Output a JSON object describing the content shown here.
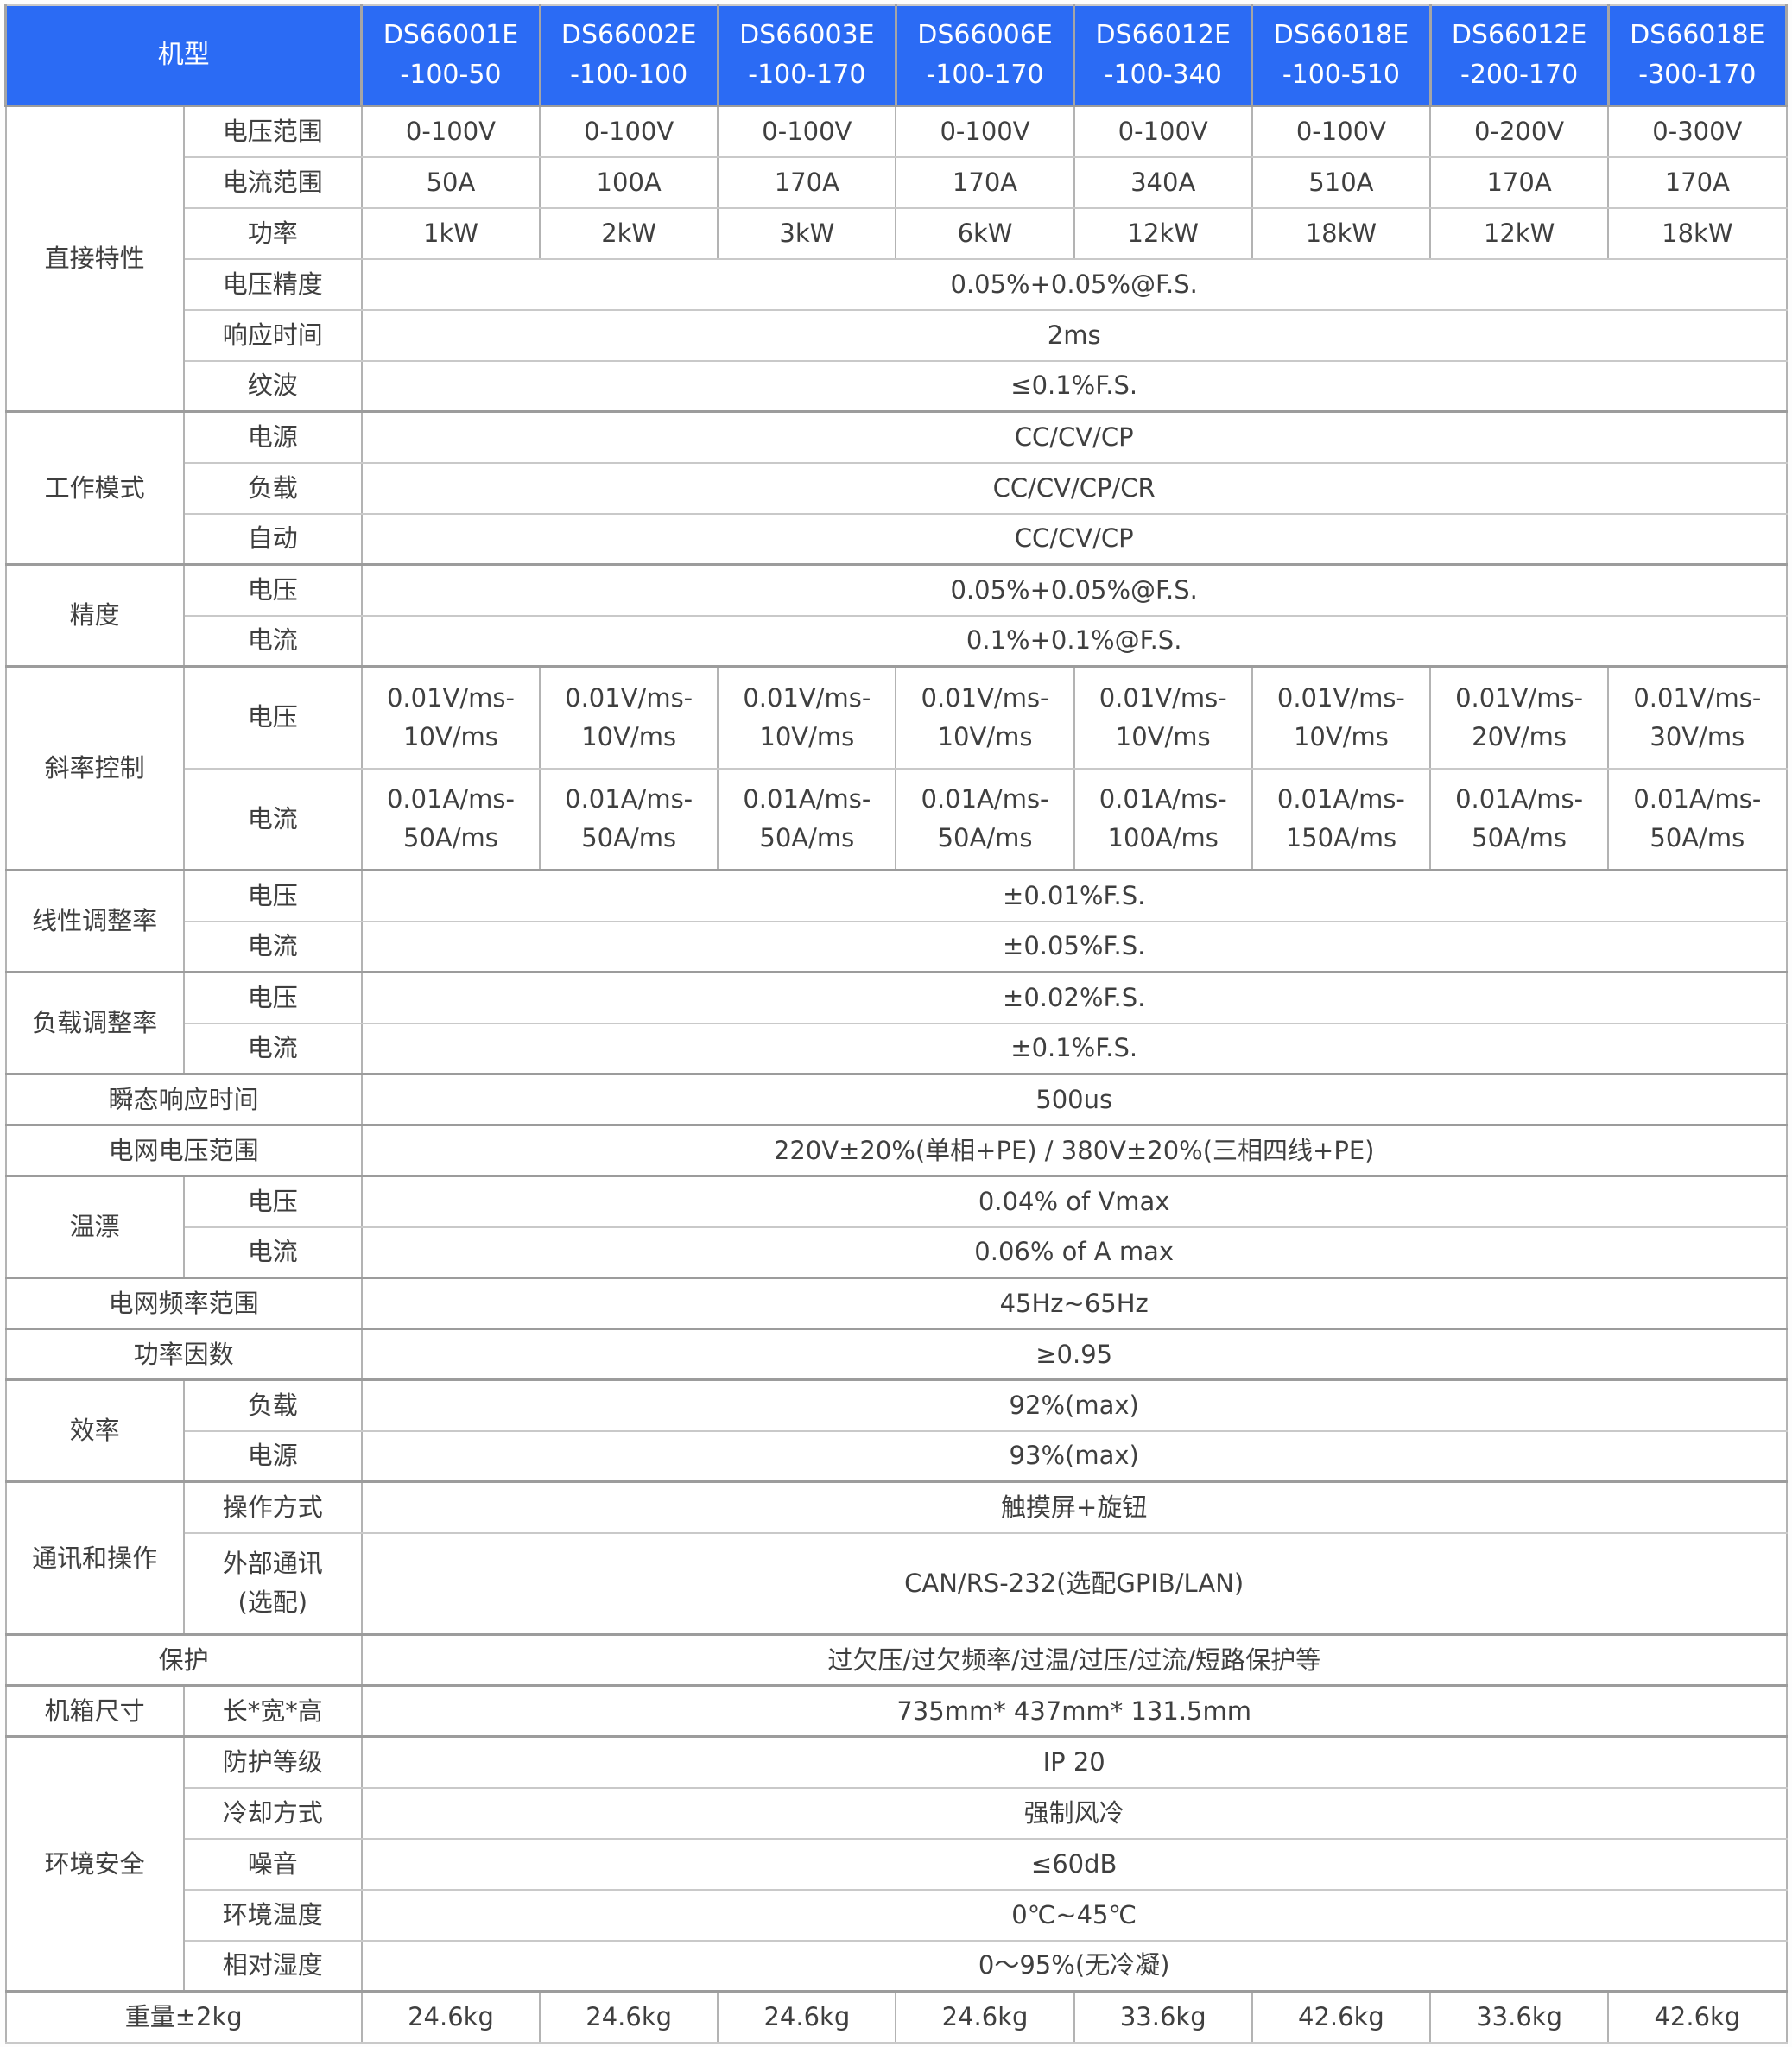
{
  "colors": {
    "header_bg": "#2b6bf4",
    "header_text": "#ffffff",
    "body_text": "#3f3f3f",
    "grid_line": "#c9c9c9",
    "group_line": "#9c9c9c"
  },
  "header": {
    "model_label": "机型",
    "models": [
      "DS66001E\n-100-50",
      "DS66002E\n-100-100",
      "DS66003E\n-100-170",
      "DS66006E\n-100-170",
      "DS66012E\n-100-340",
      "DS66018E\n-100-510",
      "DS66012E\n-200-170",
      "DS66018E\n-300-170"
    ]
  },
  "groups": [
    {
      "name": "直接特性",
      "rows": [
        {
          "label": "电压范围",
          "values": [
            "0-100V",
            "0-100V",
            "0-100V",
            "0-100V",
            "0-100V",
            "0-100V",
            "0-200V",
            "0-300V"
          ]
        },
        {
          "label": "电流范围",
          "values": [
            "50A",
            "100A",
            "170A",
            "170A",
            "340A",
            "510A",
            "170A",
            "170A"
          ]
        },
        {
          "label": "功率",
          "values": [
            "1kW",
            "2kW",
            "3kW",
            "6kW",
            "12kW",
            "18kW",
            "12kW",
            "18kW"
          ]
        },
        {
          "label": "电压精度",
          "value": "0.05%+0.05%@F.S."
        },
        {
          "label": "响应时间",
          "value": "2ms"
        },
        {
          "label": "纹波",
          "value": "≤0.1%F.S."
        }
      ]
    },
    {
      "name": "工作模式",
      "rows": [
        {
          "label": "电源",
          "value": "CC/CV/CP"
        },
        {
          "label": "负载",
          "value": "CC/CV/CP/CR"
        },
        {
          "label": "自动",
          "value": "CC/CV/CP"
        }
      ]
    },
    {
      "name": "精度",
      "rows": [
        {
          "label": "电压",
          "value": "0.05%+0.05%@F.S."
        },
        {
          "label": "电流",
          "value": "0.1%+0.1%@F.S."
        }
      ]
    },
    {
      "name": "斜率控制",
      "rows": [
        {
          "label": "电压",
          "values": [
            "0.01V/ms-\n10V/ms",
            "0.01V/ms-\n10V/ms",
            "0.01V/ms-\n10V/ms",
            "0.01V/ms-\n10V/ms",
            "0.01V/ms-\n10V/ms",
            "0.01V/ms-\n10V/ms",
            "0.01V/ms-\n20V/ms",
            "0.01V/ms-\n30V/ms"
          ]
        },
        {
          "label": "电流",
          "values": [
            "0.01A/ms-\n50A/ms",
            "0.01A/ms-\n50A/ms",
            "0.01A/ms-\n50A/ms",
            "0.01A/ms-\n50A/ms",
            "0.01A/ms-\n100A/ms",
            "0.01A/ms-\n150A/ms",
            "0.01A/ms-\n50A/ms",
            "0.01A/ms-\n50A/ms"
          ]
        }
      ]
    },
    {
      "name": "线性调整率",
      "rows": [
        {
          "label": "电压",
          "value": "±0.01%F.S."
        },
        {
          "label": "电流",
          "value": "±0.05%F.S."
        }
      ]
    },
    {
      "name": "负载调整率",
      "rows": [
        {
          "label": "电压",
          "value": "±0.02%F.S."
        },
        {
          "label": "电流",
          "value": "±0.1%F.S."
        }
      ]
    },
    {
      "name": "瞬态响应时间",
      "rows": [
        {
          "value": "500us"
        }
      ]
    },
    {
      "name": "电网电压范围",
      "rows": [
        {
          "value": "220V±20%(单相+PE) / 380V±20%(三相四线+PE)"
        }
      ]
    },
    {
      "name": "温漂",
      "rows": [
        {
          "label": "电压",
          "value": "0.04% of Vmax"
        },
        {
          "label": "电流",
          "value": "0.06% of A max"
        }
      ]
    },
    {
      "name": "电网频率范围",
      "rows": [
        {
          "value": "45Hz~65Hz"
        }
      ]
    },
    {
      "name": "功率因数",
      "rows": [
        {
          "value": "≥0.95"
        }
      ]
    },
    {
      "name": "效率",
      "rows": [
        {
          "label": "负载",
          "value": "92%(max)"
        },
        {
          "label": "电源",
          "value": "93%(max)"
        }
      ]
    },
    {
      "name": "通讯和操作",
      "rows": [
        {
          "label": "操作方式",
          "value": "触摸屏+旋钮"
        },
        {
          "label": "外部通讯\n(选配)",
          "value": "CAN/RS-232(选配GPIB/LAN)"
        }
      ]
    },
    {
      "name": "保护",
      "rows": [
        {
          "value": "过欠压/过欠频率/过温/过压/过流/短路保护等"
        }
      ]
    },
    {
      "name": "机箱尺寸",
      "rows": [
        {
          "label": "长*宽*高",
          "value": "735mm* 437mm* 131.5mm"
        }
      ]
    },
    {
      "name": "环境安全",
      "rows": [
        {
          "label": "防护等级",
          "value": "IP 20"
        },
        {
          "label": "冷却方式",
          "value": "强制风冷"
        },
        {
          "label": "噪音",
          "value": "≤60dB"
        },
        {
          "label": "环境温度",
          "value": "0℃~45℃"
        },
        {
          "label": "相对湿度",
          "value": "0～95%(无冷凝)"
        }
      ]
    },
    {
      "name": "重量±2kg",
      "rows": [
        {
          "values": [
            "24.6kg",
            "24.6kg",
            "24.6kg",
            "24.6kg",
            "33.6kg",
            "42.6kg",
            "33.6kg",
            "42.6kg"
          ]
        }
      ]
    }
  ]
}
